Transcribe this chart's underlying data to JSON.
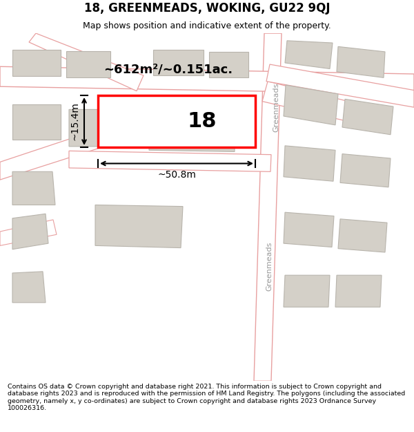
{
  "title": "18, GREENMEADS, WOKING, GU22 9QJ",
  "subtitle": "Map shows position and indicative extent of the property.",
  "footer": "Contains OS data © Crown copyright and database right 2021. This information is subject to Crown copyright and database rights 2023 and is reproduced with the permission of HM Land Registry. The polygons (including the associated geometry, namely x, y co-ordinates) are subject to Crown copyright and database rights 2023 Ordnance Survey 100026316.",
  "bg_color": "#f0ece4",
  "road_color": "#ffffff",
  "road_edge": "#e8a0a0",
  "building_fill": "#d4d0c8",
  "building_edge": "#b8b4ac",
  "highlight_fill": "#ffffff",
  "highlight_edge": "#ff0000",
  "label_18": "18",
  "area_label": "~612m²/~0.151ac.",
  "width_label": "~50.8m",
  "height_label": "~15.4m",
  "road_label_1": "Greenmeads",
  "road_label_2": "Greenmeads",
  "dim_color": "#000000",
  "text_color": "#000000",
  "road_label_color": "#999999",
  "title_fontsize": 12,
  "subtitle_fontsize": 9,
  "footer_fontsize": 6.8,
  "figwidth": 6.0,
  "figheight": 6.25,
  "dpi": 100
}
